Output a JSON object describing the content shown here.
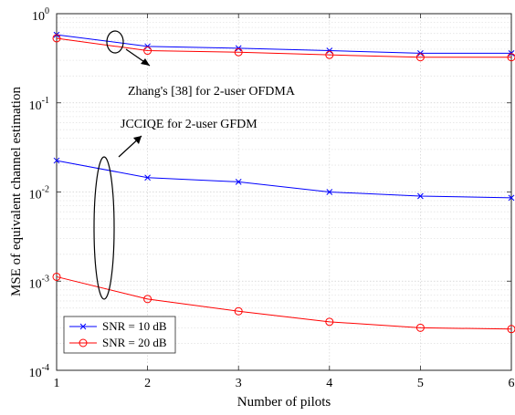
{
  "chart_data": {
    "type": "line",
    "title": "",
    "xlabel": "Number of pilots",
    "ylabel": "MSE of equivalent channel estimation",
    "x": [
      1,
      2,
      3,
      4,
      5,
      6
    ],
    "xlim": [
      1,
      6
    ],
    "ylim": [
      0.0001,
      1
    ],
    "yscale": "log",
    "xticks": [
      1,
      2,
      3,
      4,
      5,
      6
    ],
    "yticks": [
      {
        "value": 0.0001,
        "base": "10",
        "exp": "-4"
      },
      {
        "value": 0.001,
        "base": "10",
        "exp": "-3"
      },
      {
        "value": 0.01,
        "base": "10",
        "exp": "-2"
      },
      {
        "value": 0.1,
        "base": "10",
        "exp": "-1"
      },
      {
        "value": 1,
        "base": "10",
        "exp": "0"
      }
    ],
    "grid": true,
    "legend": "bottom-left",
    "series": [
      {
        "name": "SNR = 10 dB",
        "color": "#0000ff",
        "marker": "x",
        "groups": [
          [
            0.58,
            0.43,
            0.41,
            0.385,
            0.36,
            0.36
          ],
          [
            0.0225,
            0.0145,
            0.013,
            0.01,
            0.009,
            0.0086
          ]
        ]
      },
      {
        "name": "SNR = 20 dB",
        "color": "#ff0000",
        "marker": "o",
        "groups": [
          [
            0.53,
            0.385,
            0.37,
            0.345,
            0.325,
            0.325
          ],
          [
            0.00112,
            0.00063,
            0.00046,
            0.00035,
            0.0003,
            0.00029
          ]
        ]
      }
    ],
    "annotations": [
      {
        "text": "Zhang's [38] for 2-user OFDMA"
      },
      {
        "text": "JCCIQE for 2-user GFDM"
      }
    ]
  }
}
